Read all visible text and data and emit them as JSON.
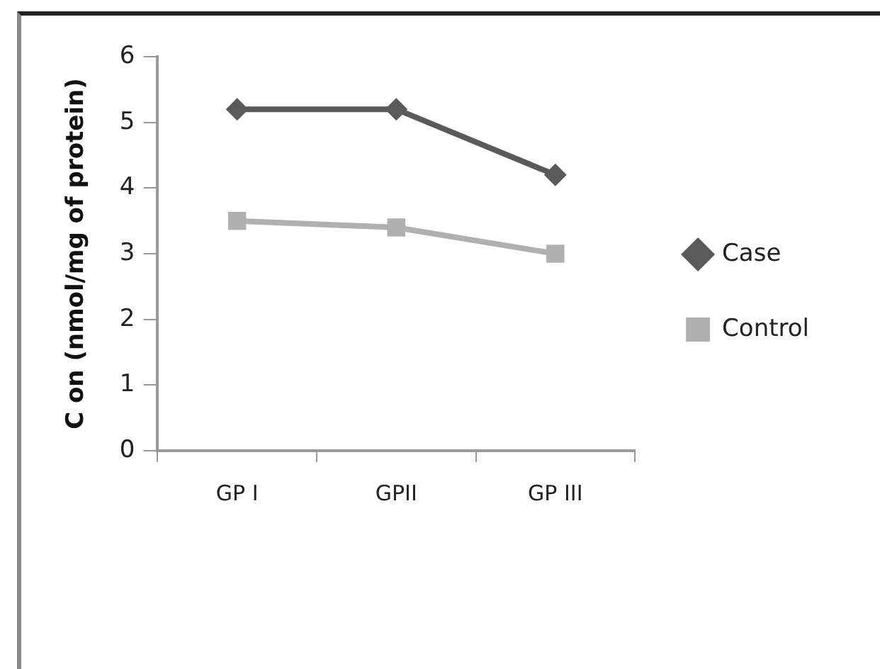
{
  "chart_data": {
    "type": "line",
    "ylabel": "C on (nmol/mg of protein)",
    "categories": [
      "GP I",
      "GPII",
      "GP III"
    ],
    "series": [
      {
        "name": "Case",
        "color": "#5a5a5a",
        "values": [
          5.2,
          5.2,
          4.2
        ],
        "marker": "diamond"
      },
      {
        "name": "Control",
        "color": "#b0b0b0",
        "values": [
          3.5,
          3.4,
          3.0
        ],
        "marker": "square"
      }
    ],
    "ylim": [
      0,
      6
    ],
    "yticks": [
      0,
      1,
      2,
      3,
      4,
      5,
      6
    ],
    "grid": false,
    "legend": "right",
    "line_style": "solid"
  }
}
